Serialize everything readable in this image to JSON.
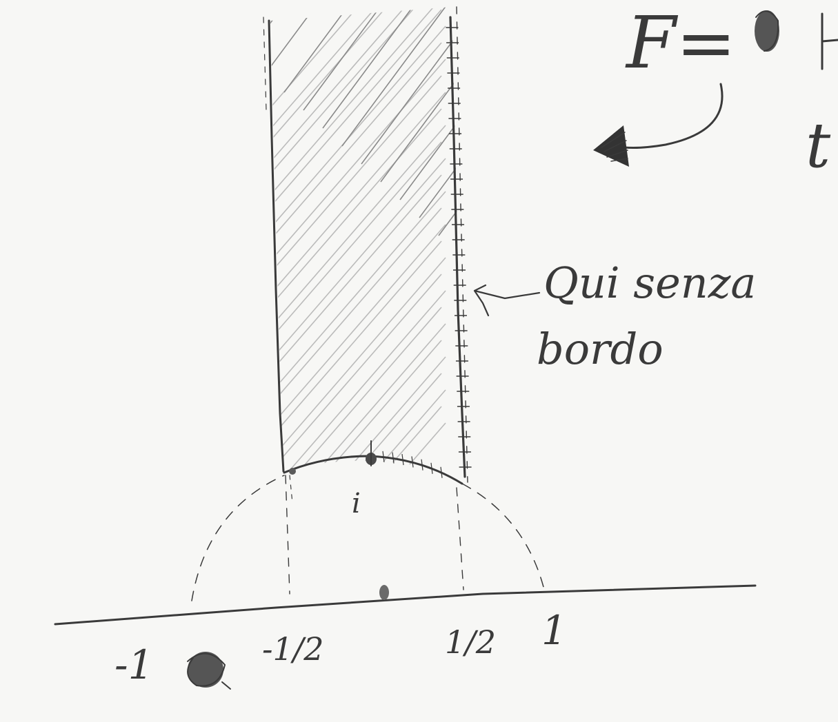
{
  "labels": {
    "formula": "F=",
    "formula_cut_tail": "t",
    "point_i": "i",
    "tick_minus_one": "-1",
    "tick_minus_half": "-1/2",
    "tick_half": "1/2",
    "tick_one": "1",
    "note_line1": "Qui senza",
    "note_line2": "bordo"
  },
  "colors": {
    "ink": "#3a3a3a",
    "paper": "#f7f7f5",
    "hatch": "#8a8a8a"
  },
  "icons": {
    "arrow_head": "filled-triangle",
    "smudge": "scribble-blot"
  }
}
